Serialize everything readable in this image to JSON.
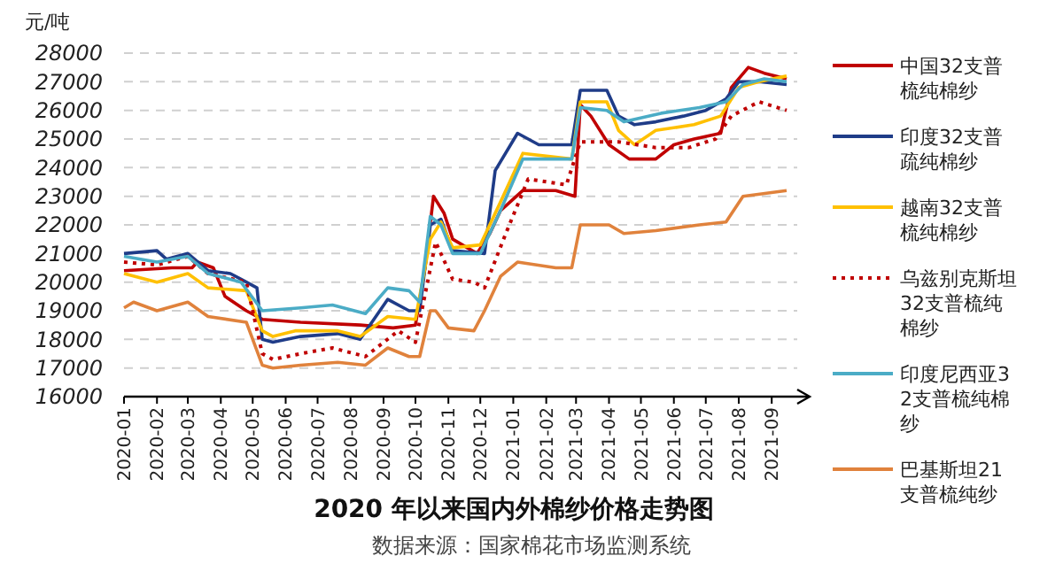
{
  "chart_data": {
    "type": "line",
    "title": "2020 年以来国内外棉纱价格走势图",
    "ylabel": "元/吨",
    "annotations": [
      "数据来源：国家棉花市场监测系统"
    ],
    "xlim": [
      "2020-01-01",
      "2021-09-25"
    ],
    "xticks": [
      "2020-01",
      "2020-02",
      "2020-03",
      "2020-04",
      "2020-05",
      "2020-06",
      "2020-07",
      "2020-08",
      "2020-09",
      "2020-10",
      "2020-11",
      "2020-12",
      "2021-01",
      "2021-02",
      "2021-03",
      "2021-04",
      "2021-05",
      "2021-06",
      "2021-07",
      "2021-08",
      "2021-09"
    ],
    "ylim": [
      16000,
      28000
    ],
    "yticks": [
      16000,
      17000,
      18000,
      19000,
      20000,
      21000,
      22000,
      23000,
      24000,
      25000,
      26000,
      27000,
      28000
    ],
    "grid": "y",
    "legend": "right",
    "series": [
      {
        "name": "中国32支普梳纯棉纱",
        "color": "#c00000",
        "line_style": "solid",
        "x": [
          "2020-01-01",
          "2020-02-15",
          "2020-03-05",
          "2020-03-10",
          "2020-03-25",
          "2020-04-05",
          "2020-04-25",
          "2020-05-10",
          "2020-06-15",
          "2020-08-10",
          "2020-09-10",
          "2020-10-01",
          "2020-10-10",
          "2020-10-18",
          "2020-10-28",
          "2020-11-05",
          "2020-11-28",
          "2020-12-10",
          "2020-12-20",
          "2021-01-10",
          "2021-02-10",
          "2021-02-28",
          "2021-03-05",
          "2021-03-15",
          "2021-04-01",
          "2021-04-20",
          "2021-05-15",
          "2021-06-01",
          "2021-06-20",
          "2021-07-15",
          "2021-07-25",
          "2021-08-10",
          "2021-08-25",
          "2021-09-15"
        ],
        "values": [
          20400,
          20500,
          20500,
          20700,
          20500,
          19500,
          19000,
          18700,
          18600,
          18500,
          18400,
          18500,
          20500,
          23000,
          22400,
          21500,
          21000,
          21700,
          22500,
          23200,
          23200,
          23000,
          26200,
          25800,
          24800,
          24300,
          24300,
          24800,
          25000,
          25200,
          26800,
          27500,
          27300,
          27100
        ]
      },
      {
        "name": "印度32支普疏纯棉纱",
        "color": "#1f3c88",
        "line_style": "solid",
        "x": [
          "2020-01-01",
          "2020-02-01",
          "2020-02-10",
          "2020-03-01",
          "2020-03-20",
          "2020-04-10",
          "2020-04-20",
          "2020-05-05",
          "2020-05-10",
          "2020-05-20",
          "2020-06-15",
          "2020-07-20",
          "2020-08-10",
          "2020-09-05",
          "2020-09-25",
          "2020-10-05",
          "2020-10-15",
          "2020-10-25",
          "2020-11-05",
          "2020-12-05",
          "2020-12-15",
          "2021-01-05",
          "2021-01-25",
          "2021-02-25",
          "2021-03-05",
          "2021-03-30",
          "2021-04-10",
          "2021-04-25",
          "2021-05-15",
          "2021-06-10",
          "2021-07-01",
          "2021-07-20",
          "2021-08-01",
          "2021-08-20",
          "2021-09-15"
        ],
        "values": [
          21000,
          21100,
          20800,
          21000,
          20400,
          20300,
          20100,
          19800,
          18000,
          17900,
          18100,
          18200,
          18000,
          19400,
          19000,
          19000,
          22000,
          22200,
          21100,
          21000,
          23900,
          25200,
          24800,
          24800,
          26700,
          26700,
          25800,
          25500,
          25600,
          25800,
          26000,
          26400,
          27000,
          27000,
          26900
        ]
      },
      {
        "name": "越南32支普梳纯棉纱",
        "color": "#ffc000",
        "line_style": "solid",
        "x": [
          "2020-01-01",
          "2020-02-01",
          "2020-03-01",
          "2020-03-20",
          "2020-04-25",
          "2020-05-10",
          "2020-05-20",
          "2020-06-10",
          "2020-07-20",
          "2020-08-10",
          "2020-09-05",
          "2020-10-01",
          "2020-10-15",
          "2020-10-25",
          "2020-11-05",
          "2020-12-01",
          "2020-12-20",
          "2021-01-10",
          "2021-02-25",
          "2021-03-05",
          "2021-03-30",
          "2021-04-10",
          "2021-04-25",
          "2021-05-15",
          "2021-06-20",
          "2021-07-15",
          "2021-08-01",
          "2021-08-20",
          "2021-09-15"
        ],
        "values": [
          20300,
          20000,
          20300,
          19800,
          19700,
          18300,
          18100,
          18300,
          18300,
          18100,
          18800,
          18700,
          21500,
          22100,
          21200,
          21300,
          22800,
          24500,
          24300,
          26300,
          26300,
          25300,
          24800,
          25300,
          25500,
          25800,
          26800,
          27000,
          27200
        ]
      },
      {
        "name": "乌兹别克斯坦32支普梳纯棉纱",
        "color": "#c00000",
        "line_style": "dotted",
        "x": [
          "2020-01-01",
          "2020-02-01",
          "2020-03-01",
          "2020-03-20",
          "2020-04-25",
          "2020-05-10",
          "2020-05-20",
          "2020-06-15",
          "2020-07-15",
          "2020-08-15",
          "2020-09-15",
          "2020-10-01",
          "2020-10-20",
          "2020-11-05",
          "2020-11-25",
          "2020-12-05",
          "2020-12-25",
          "2021-01-15",
          "2021-02-20",
          "2021-03-05",
          "2021-04-10",
          "2021-05-15",
          "2021-06-15",
          "2021-07-10",
          "2021-07-25",
          "2021-08-20",
          "2021-09-15"
        ],
        "values": [
          20700,
          20600,
          20900,
          20300,
          20000,
          17500,
          17300,
          17500,
          17700,
          17400,
          18300,
          17900,
          21400,
          20100,
          20000,
          19800,
          21700,
          23600,
          23400,
          24900,
          24900,
          24700,
          24700,
          25000,
          25800,
          26300,
          26000
        ]
      },
      {
        "name": "印度尼西亚32支普梳纯棉纱",
        "color": "#4bacc6",
        "line_style": "solid",
        "x": [
          "2020-01-01",
          "2020-02-01",
          "2020-03-01",
          "2020-03-20",
          "2020-04-20",
          "2020-05-10",
          "2020-06-15",
          "2020-07-15",
          "2020-08-15",
          "2020-09-05",
          "2020-09-25",
          "2020-10-05",
          "2020-10-15",
          "2020-10-25",
          "2020-11-05",
          "2020-12-01",
          "2020-12-20",
          "2021-01-10",
          "2021-02-25",
          "2021-03-05",
          "2021-03-30",
          "2021-04-15",
          "2021-05-20",
          "2021-06-25",
          "2021-07-20",
          "2021-08-05",
          "2021-08-25",
          "2021-09-15"
        ],
        "values": [
          20900,
          20700,
          20900,
          20300,
          20000,
          19000,
          19100,
          19200,
          18900,
          19800,
          19700,
          19300,
          22300,
          22000,
          21000,
          21000,
          22500,
          24300,
          24300,
          26100,
          26000,
          25600,
          25900,
          26100,
          26300,
          26900,
          27100,
          27000
        ]
      },
      {
        "name": "巴基斯坦21支普梳纯纱",
        "color": "#e0823c",
        "line_style": "solid",
        "x": [
          "2020-01-01",
          "2020-01-10",
          "2020-02-01",
          "2020-03-01",
          "2020-03-20",
          "2020-04-25",
          "2020-05-10",
          "2020-05-20",
          "2020-06-15",
          "2020-07-20",
          "2020-08-15",
          "2020-09-05",
          "2020-09-25",
          "2020-10-05",
          "2020-10-15",
          "2020-10-20",
          "2020-11-01",
          "2020-11-25",
          "2020-12-05",
          "2020-12-20",
          "2021-01-05",
          "2021-02-10",
          "2021-02-25",
          "2021-03-05",
          "2021-04-01",
          "2021-04-15",
          "2021-05-15",
          "2021-06-25",
          "2021-07-20",
          "2021-08-05",
          "2021-09-15"
        ],
        "values": [
          19100,
          19300,
          19000,
          19300,
          18800,
          18600,
          17100,
          17000,
          17100,
          17200,
          17100,
          17700,
          17400,
          17400,
          19000,
          19000,
          18400,
          18300,
          19000,
          20200,
          20700,
          20500,
          20500,
          22000,
          22000,
          21700,
          21800,
          22000,
          22100,
          23000,
          23200
        ]
      }
    ]
  }
}
